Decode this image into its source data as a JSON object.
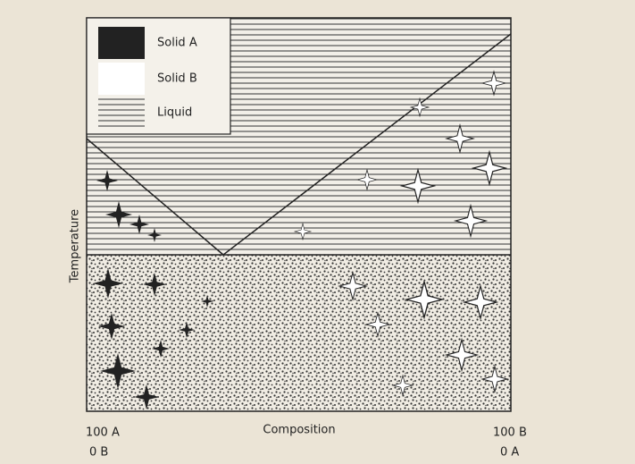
{
  "legend": {
    "items": [
      {
        "label": "Solid A"
      },
      {
        "label": "Solid B"
      },
      {
        "label": "Liquid"
      }
    ]
  },
  "axes": {
    "y_label": "Temperature",
    "x_label": "Composition"
  },
  "corners": {
    "left": [
      "100 A",
      "0 B"
    ],
    "right": [
      "100 B",
      "0 A"
    ]
  }
}
